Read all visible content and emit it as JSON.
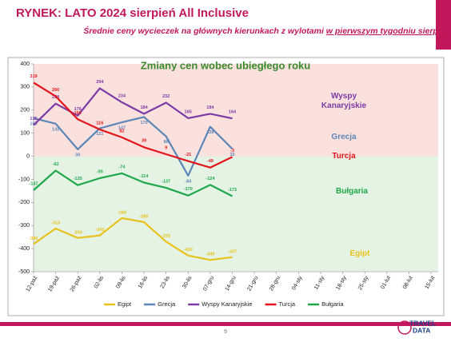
{
  "chart_data": {
    "type": "line",
    "title": "RYNEK: LATO 2024 sierpień All Inclusive",
    "subtitle": "Średnie ceny wycieczek na głównych kierunkach z wylotami",
    "subtitle_emphasis": "w pierwszym tygodniu sierpnia",
    "chart_title": "Zmiany cen wobec ubiegłego roku",
    "categories": [
      "12-paź",
      "19-paź",
      "26-paź",
      "02-lis",
      "09-lis",
      "16-lis",
      "23-lis",
      "30-lis",
      "07-gru",
      "14-gru",
      "21-gru",
      "28-gru",
      "04-sty",
      "11-sty",
      "18-sty",
      "25-sty",
      "01-lut",
      "08-lut",
      "15-lut"
    ],
    "series": [
      {
        "name": "Egipt",
        "color": "#e8c21c",
        "values": [
          -380,
          -313,
          -354,
          -343,
          -268,
          -285,
          -370,
          -430,
          -449,
          -437,
          null,
          null,
          null,
          null,
          null,
          null,
          null,
          null,
          null
        ]
      },
      {
        "name": "Grecja",
        "color": "#5b86b8",
        "values": [
          165,
          141,
          30,
          121,
          147,
          170,
          86,
          -84,
          128,
          32,
          null,
          null,
          null,
          null,
          null,
          null,
          null,
          null,
          null
        ]
      },
      {
        "name": "Wyspy Kanaryjskie",
        "color": "#7b3aa6",
        "values": [
          135,
          228,
          176,
          294,
          234,
          184,
          232,
          165,
          184,
          164,
          null,
          null,
          null,
          null,
          null,
          null,
          null,
          null,
          null
        ]
      },
      {
        "name": "Turcja",
        "color": "#e3141b",
        "values": [
          319,
          260,
          160,
          116,
          82,
          39,
          9,
          -21,
          -49,
          -3,
          null,
          null,
          null,
          null,
          null,
          null,
          null,
          null,
          null
        ]
      },
      {
        "name": "Bułgaria",
        "color": "#1fa84a",
        "values": [
          -147,
          -62,
          -125,
          -95,
          -74,
          -114,
          -137,
          -170,
          -124,
          -173,
          null,
          null,
          null,
          null,
          null,
          null,
          null,
          null,
          null
        ]
      }
    ],
    "ylim": [
      -500,
      400
    ],
    "yticks": [
      -500,
      -400,
      -300,
      -200,
      -100,
      0,
      100,
      200,
      300,
      400
    ],
    "legend": "bottom",
    "footer": {
      "page": "9",
      "logo_top": "TRAVEL",
      "logo_bottom": "DATA"
    }
  }
}
